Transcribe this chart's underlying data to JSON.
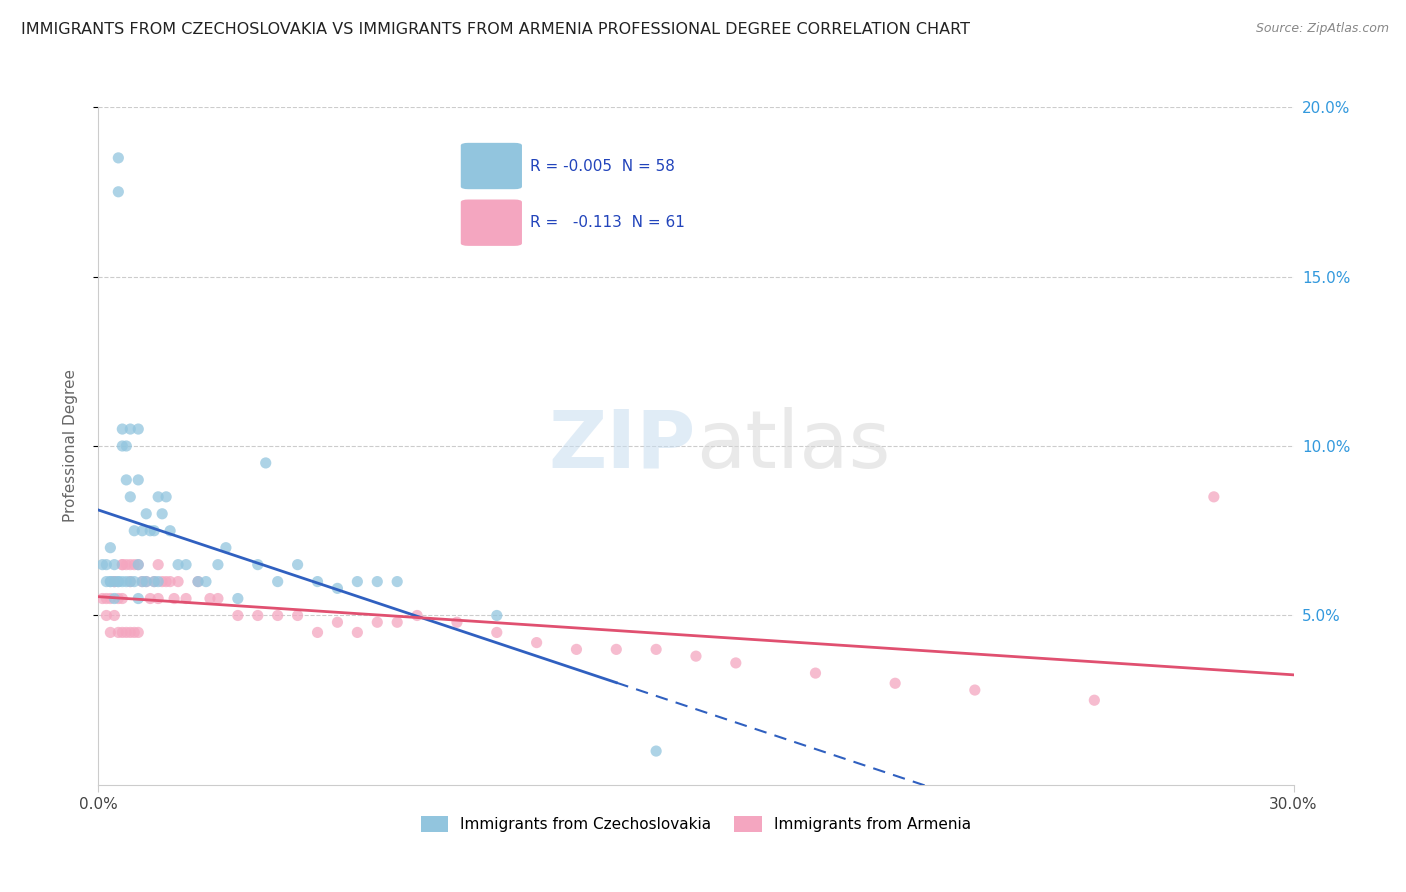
{
  "title": "IMMIGRANTS FROM CZECHOSLOVAKIA VS IMMIGRANTS FROM ARMENIA PROFESSIONAL DEGREE CORRELATION CHART",
  "source": "Source: ZipAtlas.com",
  "ylabel_label": "Professional Degree",
  "x_min": 0.0,
  "x_max": 0.3,
  "y_min": 0.0,
  "y_max": 0.2,
  "legend_r1": "R = -0.005",
  "legend_n1": "N = 58",
  "legend_r2": "R =  -0.113",
  "legend_n2": "N = 61",
  "color_czech": "#92c5de",
  "color_armenia": "#f4a6c0",
  "color_trend_czech": "#3060c0",
  "color_trend_armenia": "#e05070",
  "watermark_zip": "ZIP",
  "watermark_atlas": "atlas",
  "czech_x": [
    0.001,
    0.002,
    0.002,
    0.003,
    0.003,
    0.004,
    0.004,
    0.004,
    0.005,
    0.005,
    0.005,
    0.006,
    0.006,
    0.006,
    0.007,
    0.007,
    0.007,
    0.008,
    0.008,
    0.008,
    0.009,
    0.009,
    0.01,
    0.01,
    0.01,
    0.01,
    0.011,
    0.011,
    0.012,
    0.012,
    0.013,
    0.014,
    0.014,
    0.015,
    0.015,
    0.016,
    0.017,
    0.018,
    0.02,
    0.022,
    0.025,
    0.027,
    0.03,
    0.032,
    0.035,
    0.04,
    0.042,
    0.045,
    0.05,
    0.055,
    0.06,
    0.065,
    0.07,
    0.075,
    0.1,
    0.14,
    0.003,
    0.005
  ],
  "czech_y": [
    0.065,
    0.065,
    0.06,
    0.06,
    0.07,
    0.065,
    0.06,
    0.055,
    0.185,
    0.175,
    0.06,
    0.105,
    0.1,
    0.06,
    0.1,
    0.09,
    0.06,
    0.105,
    0.085,
    0.06,
    0.075,
    0.06,
    0.105,
    0.09,
    0.065,
    0.055,
    0.075,
    0.06,
    0.08,
    0.06,
    0.075,
    0.075,
    0.06,
    0.085,
    0.06,
    0.08,
    0.085,
    0.075,
    0.065,
    0.065,
    0.06,
    0.06,
    0.065,
    0.07,
    0.055,
    0.065,
    0.095,
    0.06,
    0.065,
    0.06,
    0.058,
    0.06,
    0.06,
    0.06,
    0.05,
    0.01,
    0.06,
    0.06
  ],
  "armenia_x": [
    0.001,
    0.002,
    0.002,
    0.003,
    0.003,
    0.004,
    0.004,
    0.005,
    0.005,
    0.006,
    0.006,
    0.006,
    0.007,
    0.007,
    0.008,
    0.008,
    0.009,
    0.009,
    0.01,
    0.01,
    0.011,
    0.012,
    0.013,
    0.014,
    0.015,
    0.015,
    0.016,
    0.017,
    0.018,
    0.019,
    0.02,
    0.022,
    0.025,
    0.028,
    0.03,
    0.035,
    0.04,
    0.045,
    0.05,
    0.055,
    0.06,
    0.065,
    0.07,
    0.075,
    0.08,
    0.09,
    0.1,
    0.11,
    0.12,
    0.13,
    0.14,
    0.15,
    0.16,
    0.18,
    0.2,
    0.22,
    0.25,
    0.28,
    0.004,
    0.006,
    0.008
  ],
  "armenia_y": [
    0.055,
    0.055,
    0.05,
    0.055,
    0.045,
    0.06,
    0.05,
    0.055,
    0.045,
    0.065,
    0.055,
    0.045,
    0.065,
    0.045,
    0.065,
    0.045,
    0.065,
    0.045,
    0.065,
    0.045,
    0.06,
    0.06,
    0.055,
    0.06,
    0.065,
    0.055,
    0.06,
    0.06,
    0.06,
    0.055,
    0.06,
    0.055,
    0.06,
    0.055,
    0.055,
    0.05,
    0.05,
    0.05,
    0.05,
    0.045,
    0.048,
    0.045,
    0.048,
    0.048,
    0.05,
    0.048,
    0.045,
    0.042,
    0.04,
    0.04,
    0.04,
    0.038,
    0.036,
    0.033,
    0.03,
    0.028,
    0.025,
    0.085,
    0.06,
    0.065,
    0.06
  ]
}
